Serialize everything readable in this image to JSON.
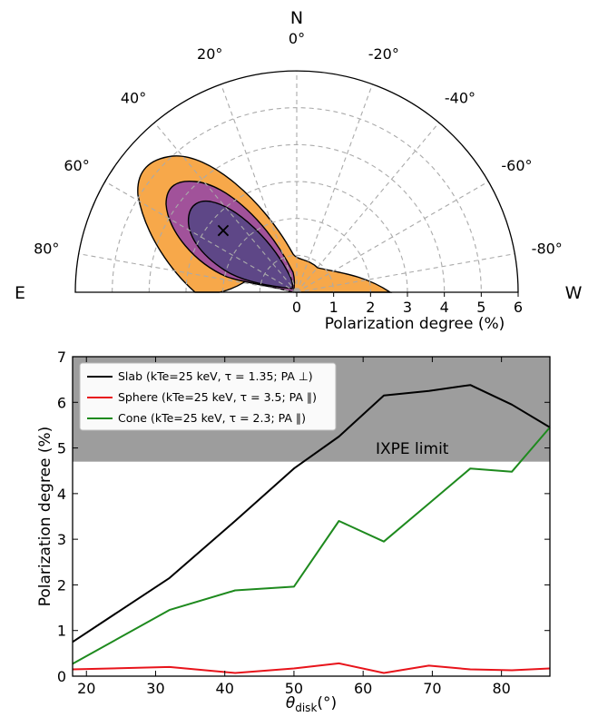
{
  "chart_data": [
    {
      "type": "polar-contour",
      "cardinal_labels": {
        "north": "N",
        "east": "E",
        "west": "W"
      },
      "angle_ticks": [
        "80°",
        "60°",
        "40°",
        "20°",
        "0°",
        "-20°",
        "-40°",
        "-60°",
        "-80°"
      ],
      "radial_ticks": [
        "0",
        "1",
        "2",
        "3",
        "4",
        "5",
        "6"
      ],
      "radial_range": [
        0,
        6
      ],
      "xlabel": "Polarization degree (%)",
      "best_fit": {
        "pd": 2.6,
        "pa": 50,
        "marker": "×"
      },
      "contour_colors": [
        "#f7a84a",
        "#a1529a",
        "#5e4787"
      ],
      "grid": true
    },
    {
      "type": "line",
      "xlabel": "θdisk(°)",
      "xlabel_main": "θ",
      "xlabel_sub": "disk",
      "xlabel_tail": "(°)",
      "ylabel": "Polarization degree (%)",
      "xlim": [
        18,
        87
      ],
      "ylim": [
        0,
        7
      ],
      "xticks": [
        "20",
        "30",
        "40",
        "50",
        "60",
        "70",
        "80"
      ],
      "yticks": [
        "0",
        "1",
        "2",
        "3",
        "4",
        "5",
        "6",
        "7"
      ],
      "limit": {
        "label": "IXPE limit",
        "value": 4.7,
        "color": "#8c8c8c"
      },
      "legend_position": "upper-left",
      "series": [
        {
          "name": "Slab (kTe=25 keV, τ = 1.35; PA ⊥)",
          "color": "#000000",
          "x": [
            18,
            32,
            41.5,
            50,
            56.5,
            63,
            69.5,
            75.5,
            81.5,
            87
          ],
          "y": [
            0.75,
            2.15,
            3.4,
            4.55,
            5.25,
            6.15,
            6.25,
            6.38,
            5.95,
            5.45
          ]
        },
        {
          "name": "Sphere (kTe=25 keV, τ = 3.5; PA ∥)",
          "color": "#e8141b",
          "x": [
            18,
            32,
            41.5,
            50,
            56.5,
            63,
            69.5,
            75.5,
            81.5,
            87
          ],
          "y": [
            0.15,
            0.2,
            0.07,
            0.17,
            0.28,
            0.07,
            0.23,
            0.15,
            0.13,
            0.17
          ]
        },
        {
          "name": "Cone (kTe=25 keV, τ = 2.3; PA ∥)",
          "color": "#1e8a1e",
          "x": [
            18,
            32,
            41.5,
            50,
            56.5,
            63,
            69.5,
            75.5,
            81.5,
            87
          ],
          "y": [
            0.27,
            1.45,
            1.88,
            1.96,
            3.4,
            2.95,
            3.78,
            4.55,
            4.48,
            5.45
          ]
        }
      ]
    }
  ]
}
